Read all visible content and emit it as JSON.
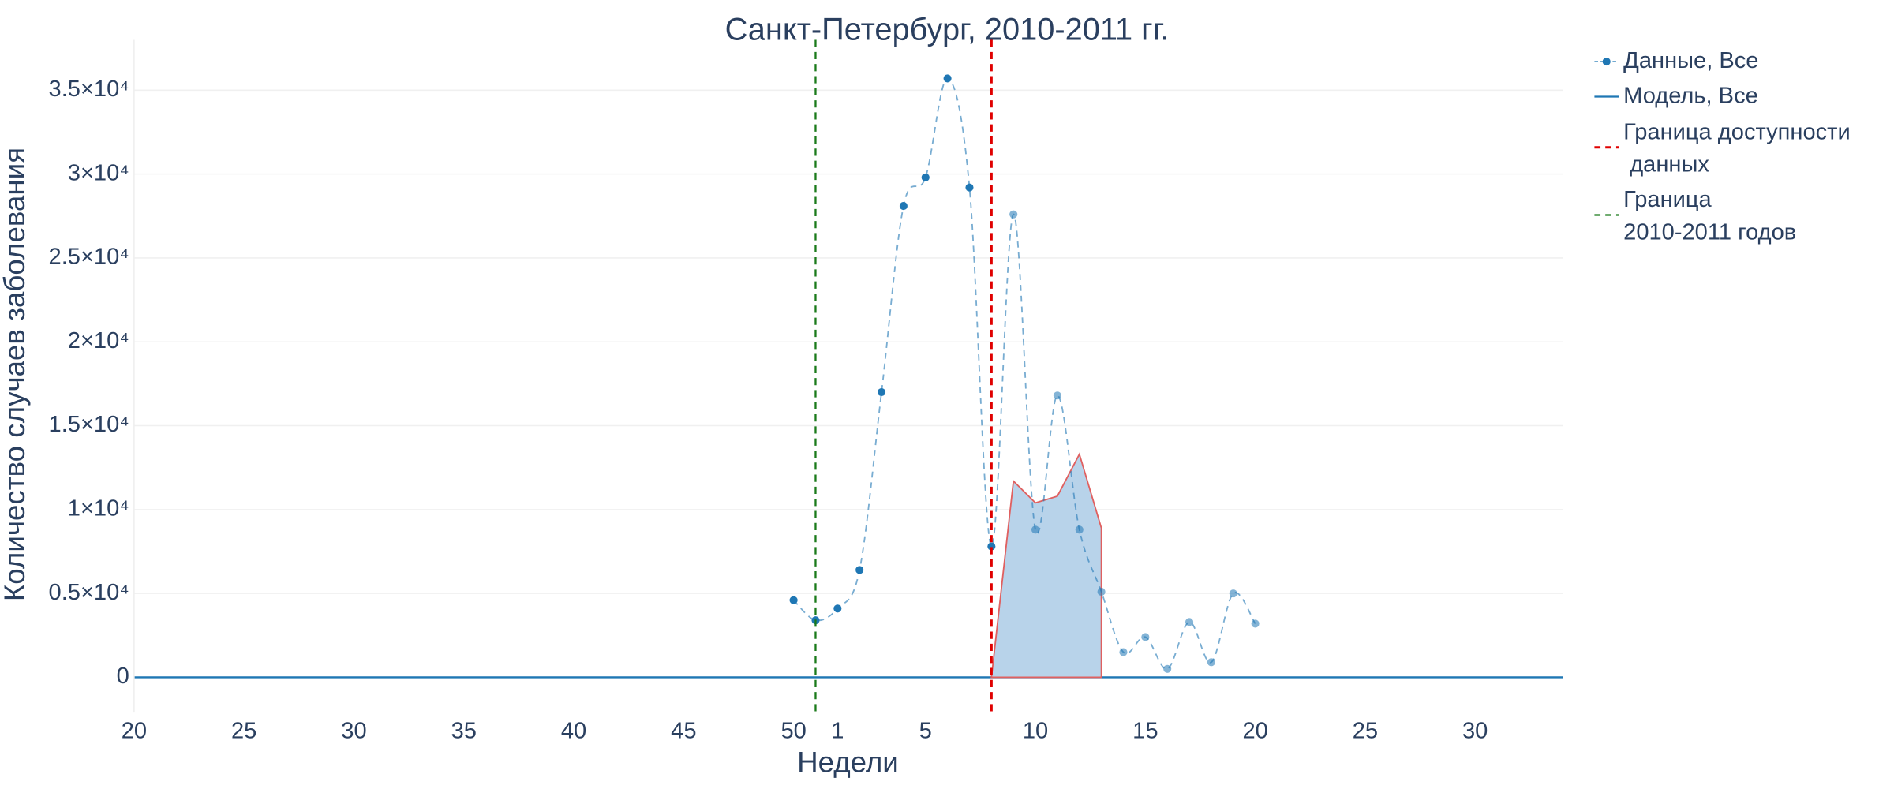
{
  "chart_data": {
    "type": "line",
    "title": "Санкт-Петербург, 2010-2011 гг.",
    "x_label": "Недели",
    "y_label": "Количество случаев заболевания",
    "xlim": [
      20,
      85
    ],
    "xticks": [
      20,
      25,
      30,
      35,
      40,
      45,
      50,
      {
        "value": 52,
        "label": "1"
      },
      {
        "value": 56,
        "label": "5"
      },
      {
        "value": 61,
        "label": "10"
      },
      {
        "value": 66,
        "label": "15"
      },
      {
        "value": 71,
        "label": "20"
      },
      {
        "value": 76,
        "label": "25"
      },
      {
        "value": 81,
        "label": "30"
      }
    ],
    "ylim": [
      -2100,
      38000
    ],
    "yticks": [
      0,
      {
        "value": 5000,
        "label": "0.5×10⁴"
      },
      {
        "value": 10000,
        "label": "1×10⁴"
      },
      {
        "value": 15000,
        "label": "1.5×10⁴"
      },
      {
        "value": 20000,
        "label": "2×10⁴"
      },
      {
        "value": 25000,
        "label": "2.5×10⁴"
      },
      {
        "value": 30000,
        "label": "3×10⁴"
      },
      {
        "value": 35000,
        "label": "3.5×10⁴"
      }
    ],
    "grid": true,
    "series": [
      {
        "name": "Данные, Все",
        "color": "#1f77b4",
        "x": [
          50,
          51,
          52,
          53,
          54,
          55,
          56,
          57,
          58,
          59,
          60,
          61,
          62,
          63,
          64,
          65,
          66,
          67,
          68,
          69,
          70,
          71
        ],
        "values": [
          4600,
          3400,
          4100,
          6400,
          17000,
          28100,
          29800,
          35700,
          29200,
          7800,
          27600,
          8800,
          16800,
          8800,
          5100,
          1500,
          2400,
          500,
          3300,
          900,
          5000,
          3200
        ]
      },
      {
        "name": "Модель, Все",
        "color": "#1f77b4",
        "line_color": "#e06060",
        "fill": "#b8d3ea",
        "x": [
          59,
          60,
          61,
          62,
          63,
          64
        ],
        "values": [
          0,
          11700,
          10400,
          10800,
          13300,
          8900
        ]
      }
    ],
    "vlines": [
      {
        "name": "Граница доступности\n данных",
        "color": "#e00000",
        "x": 59
      },
      {
        "name": "Граница\n2010-2011 годов",
        "color": "#1a7a1a",
        "x": 51
      }
    ]
  }
}
